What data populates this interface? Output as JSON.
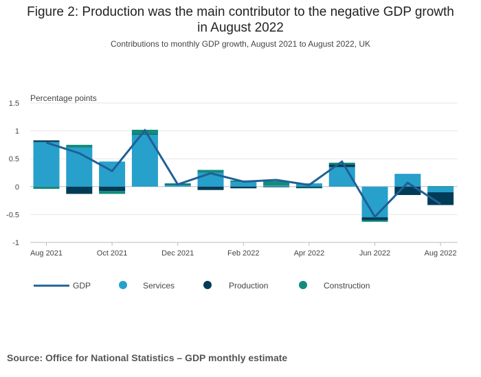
{
  "title_line1": "Figure 2: Production was the main contributor to the negative GDP growth",
  "title_line2": "in August 2022",
  "subtitle": "Contributions to monthly GDP growth, August 2021 to August 2022, UK",
  "source": "Source: Office for National Statistics – GDP monthly estimate",
  "colors": {
    "gdp": "#206095",
    "services": "#27a0cc",
    "production": "#003c57",
    "construction": "#118c7b",
    "grid": "#e6e6e6",
    "axis": "#bbbbbb"
  },
  "chart_data": {
    "type": "bar",
    "stacked": true,
    "title": "Figure 2: Production was the main contributor to the negative GDP growth in August 2022",
    "ylabel": "Percentage points",
    "ylim": [
      -1,
      1.5
    ],
    "yticks": [
      1.5,
      1,
      0.5,
      0,
      -0.5,
      -1
    ],
    "ytick_labels": [
      "1.5",
      "1",
      "0.5",
      "0",
      "-0.5",
      "-1"
    ],
    "categories": [
      "Aug 2021",
      "Sep 2021",
      "Oct 2021",
      "Nov 2021",
      "Dec 2021",
      "Jan 2022",
      "Feb 2022",
      "Mar 2022",
      "Apr 2022",
      "May 2022",
      "Jun 2022",
      "Jul 2022",
      "Aug 2022"
    ],
    "xtick_labels": [
      "Aug 2021",
      "",
      "Oct 2021",
      "",
      "Dec 2021",
      "",
      "Feb 2022",
      "",
      "Apr 2022",
      "",
      "Jun 2022",
      "",
      "Aug 2022"
    ],
    "series": [
      {
        "name": "Services",
        "kind": "bar",
        "values": [
          0.8,
          0.7,
          0.45,
          0.93,
          0.03,
          0.25,
          0.08,
          0.02,
          0.06,
          0.35,
          -0.55,
          0.23,
          -0.1
        ]
      },
      {
        "name": "Production",
        "kind": "bar",
        "values": [
          0.03,
          -0.13,
          -0.08,
          0.01,
          0.01,
          -0.06,
          -0.03,
          -0.01,
          -0.02,
          0.05,
          -0.05,
          -0.15,
          -0.23
        ]
      },
      {
        "name": "Construction",
        "kind": "bar",
        "values": [
          -0.04,
          0.05,
          -0.05,
          0.08,
          0.02,
          0.05,
          0.03,
          0.08,
          -0.01,
          0.03,
          -0.03,
          0.0,
          0.01
        ]
      },
      {
        "name": "GDP",
        "kind": "line",
        "values": [
          0.79,
          0.6,
          0.28,
          1.01,
          0.04,
          0.24,
          0.09,
          0.12,
          0.03,
          0.45,
          -0.54,
          0.07,
          -0.31
        ]
      }
    ],
    "legend": [
      "GDP",
      "Services",
      "Production",
      "Construction"
    ],
    "legend_position": "bottom"
  }
}
